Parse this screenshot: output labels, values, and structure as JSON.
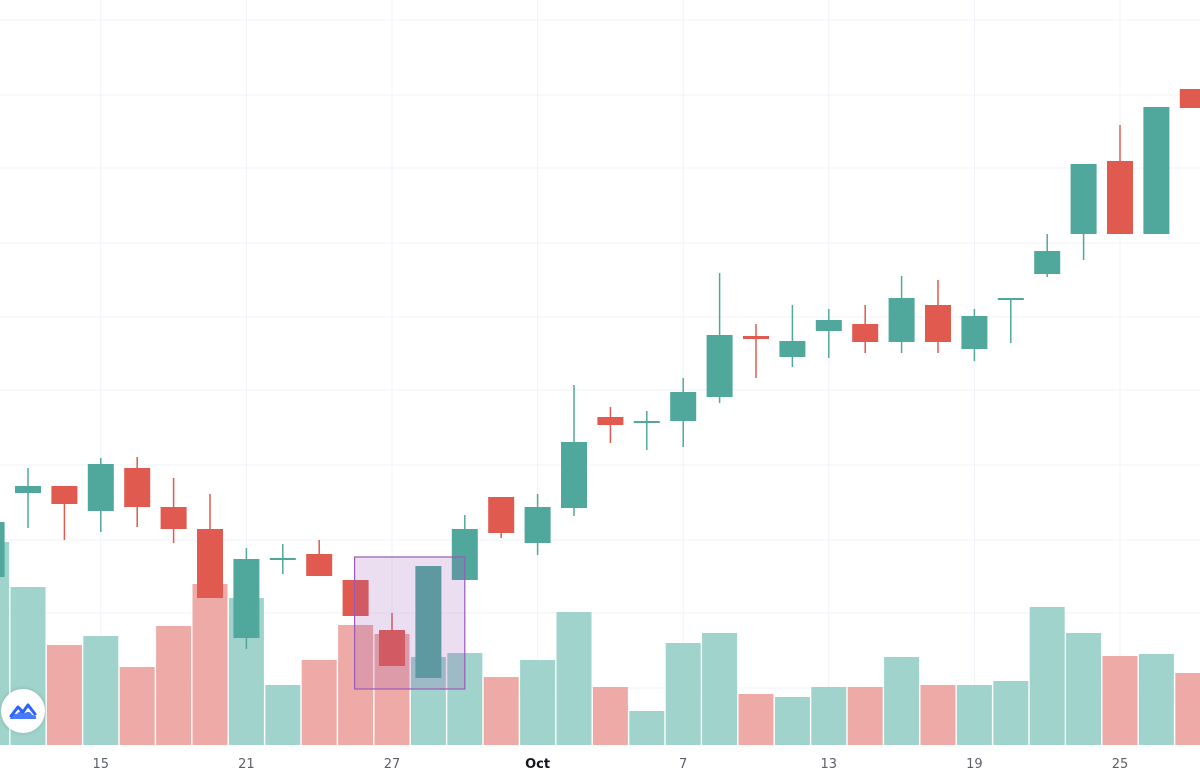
{
  "chart_data": {
    "type": "candlestick",
    "title": "",
    "xlabel": "",
    "ylabel": "",
    "price_units": "arbitrary (no price axis shown)",
    "ylim": [
      0,
      800
    ],
    "grid": true,
    "colors": {
      "up": "#4fa89b",
      "down": "#e05a4f",
      "up_volume": "#9fd3cb",
      "down_volume": "#eeaaa6",
      "selection": "#9b59b6"
    },
    "x_ticks": [
      {
        "label": "15",
        "index": 3
      },
      {
        "label": "21",
        "index": 7
      },
      {
        "label": "27",
        "index": 11
      },
      {
        "label": "Oct",
        "index": 15,
        "bold": true
      },
      {
        "label": "7",
        "index": 19
      },
      {
        "label": "13",
        "index": 23
      },
      {
        "label": "19",
        "index": 27
      },
      {
        "label": "25",
        "index": 31
      }
    ],
    "candles": [
      {
        "o": 223,
        "h": 285,
        "l": 215,
        "c": 278,
        "v": 203
      },
      {
        "o": 307,
        "h": 332,
        "l": 272,
        "c": 314,
        "v": 158
      },
      {
        "o": 314,
        "h": 314,
        "l": 260,
        "c": 296,
        "v": 100
      },
      {
        "o": 289,
        "h": 342,
        "l": 268,
        "c": 336,
        "v": 109
      },
      {
        "o": 332,
        "h": 343,
        "l": 273,
        "c": 293,
        "v": 78
      },
      {
        "o": 293,
        "h": 322,
        "l": 257,
        "c": 271,
        "v": 119
      },
      {
        "o": 271,
        "h": 306,
        "l": 202,
        "c": 202,
        "v": 161
      },
      {
        "o": 162,
        "h": 252,
        "l": 151,
        "c": 241,
        "v": 147
      },
      {
        "o": 242,
        "h": 256,
        "l": 226,
        "c": 242,
        "v": 60
      },
      {
        "o": 246,
        "h": 260,
        "l": 224,
        "c": 224,
        "v": 85
      },
      {
        "o": 220,
        "h": 220,
        "l": 184,
        "c": 184,
        "v": 120
      },
      {
        "o": 170,
        "h": 187,
        "l": 134,
        "c": 134,
        "v": 111
      },
      {
        "o": 122,
        "h": 234,
        "l": 122,
        "c": 234,
        "v": 88
      },
      {
        "o": 220,
        "h": 285,
        "l": 220,
        "c": 271,
        "v": 92
      },
      {
        "o": 303,
        "h": 303,
        "l": 262,
        "c": 267,
        "v": 68
      },
      {
        "o": 257,
        "h": 306,
        "l": 245,
        "c": 293,
        "v": 85
      },
      {
        "o": 292,
        "h": 415,
        "l": 284,
        "c": 358,
        "v": 133
      },
      {
        "o": 383,
        "h": 393,
        "l": 357,
        "c": 375,
        "v": 58
      },
      {
        "o": 379,
        "h": 389,
        "l": 350,
        "c": 379,
        "v": 34
      },
      {
        "o": 379,
        "h": 422,
        "l": 353,
        "c": 408,
        "v": 102
      },
      {
        "o": 403,
        "h": 527,
        "l": 397,
        "c": 465,
        "v": 112
      },
      {
        "o": 464,
        "h": 476,
        "l": 422,
        "c": 461,
        "v": 51
      },
      {
        "o": 443,
        "h": 495,
        "l": 433,
        "c": 459,
        "v": 48
      },
      {
        "o": 469,
        "h": 491,
        "l": 442,
        "c": 480,
        "v": 58
      },
      {
        "o": 476,
        "h": 495,
        "l": 447,
        "c": 458,
        "v": 58
      },
      {
        "o": 458,
        "h": 524,
        "l": 447,
        "c": 502,
        "v": 88
      },
      {
        "o": 495,
        "h": 520,
        "l": 447,
        "c": 458,
        "v": 60
      },
      {
        "o": 451,
        "h": 491,
        "l": 439,
        "c": 484,
        "v": 60
      },
      {
        "o": 502,
        "h": 502,
        "l": 457,
        "c": 502,
        "v": 64
      },
      {
        "o": 526,
        "h": 566,
        "l": 523,
        "c": 549,
        "v": 138
      },
      {
        "o": 566,
        "h": 636,
        "l": 540,
        "c": 636,
        "v": 112
      },
      {
        "o": 639,
        "h": 675,
        "l": 566,
        "c": 566,
        "v": 89
      },
      {
        "o": 566,
        "h": 693,
        "l": 566,
        "c": 693,
        "v": 91
      },
      {
        "o": 711,
        "h": 711,
        "l": 692,
        "c": 692,
        "v": 72
      }
    ],
    "selection": {
      "from_index": 10,
      "to_index": 13,
      "price_top": 243,
      "price_bottom": 111
    }
  },
  "logo": {
    "icon": "tradingview-cloud-icon"
  }
}
